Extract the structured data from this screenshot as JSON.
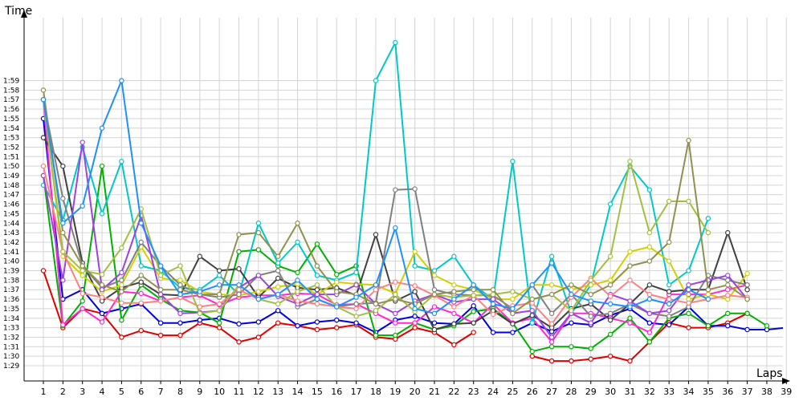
{
  "chart_data": {
    "type": "line",
    "title": "",
    "ylabel": "Time",
    "xlabel": "Laps",
    "x": [
      1,
      2,
      3,
      4,
      5,
      6,
      7,
      8,
      9,
      10,
      11,
      12,
      13,
      14,
      15,
      16,
      17,
      18,
      19,
      20,
      21,
      22,
      23,
      24,
      25,
      26,
      27,
      28,
      29,
      30,
      31,
      32,
      33,
      34,
      35,
      36,
      37,
      38,
      39
    ],
    "y_tick_labels": [
      "1:29",
      "1:30",
      "1:31",
      "1:32",
      "1:33",
      "1:34",
      "1:35",
      "1:36",
      "1:37",
      "1:38",
      "1:39",
      "1:40",
      "1:41",
      "1:42",
      "1:43",
      "1:44",
      "1:45",
      "1:46",
      "1:47",
      "1:48",
      "1:49",
      "1:50",
      "1:51",
      "1:52",
      "1:53",
      "1:54",
      "1:55",
      "1:56",
      "1:57",
      "1:58",
      "1:59"
    ],
    "ylim_seconds": [
      88,
      121
    ],
    "grid": true,
    "legend": "none",
    "series": [
      {
        "color": "#e00000",
        "values": [
          99,
          93,
          95,
          94.5,
          92,
          92.7,
          92.2,
          92.2,
          93.5,
          93,
          91.5,
          92,
          93.5,
          93.2,
          92.8,
          93,
          93.3,
          92,
          91.8,
          93,
          92.5,
          91.2,
          92.5,
          null,
          null,
          90,
          89.5,
          89.5,
          89.7,
          90,
          89.5,
          91.5,
          93.5,
          93,
          93,
          93.5,
          94.5,
          null,
          92.5
        ]
      },
      {
        "color": "#0000e0",
        "values": [
          115,
          96,
          97,
          94.5,
          95,
          95.5,
          93.5,
          93.5,
          93.8,
          94,
          93.4,
          93.6,
          94.8,
          93.2,
          93.6,
          93.8,
          93.5,
          92.5,
          93.8,
          94.2,
          93.5,
          93.4,
          95.3,
          92.5,
          92.5,
          93.5,
          92.6,
          93.5,
          93.3,
          94.3,
          95,
          93.5,
          93.3,
          95.2,
          93.2,
          93.2,
          92.8,
          92.8,
          93
        ]
      },
      {
        "color": "#00b000",
        "values": [
          109,
          93.2,
          95.8,
          110,
          93.8,
          97.5,
          96,
          94.8,
          94.6,
          93.5,
          101,
          101.2,
          99.5,
          98.8,
          101.8,
          98.6,
          99.5,
          92.2,
          92.2,
          93.5,
          92.8,
          93.2,
          94.7,
          95,
          93.5,
          90.5,
          91,
          91,
          90.8,
          92.3,
          94,
          91.5,
          94,
          94.5,
          93.2,
          94.5,
          94.5,
          93.2,
          null
        ]
      },
      {
        "color": "#ff2ad0",
        "values": [
          117,
          93.3,
          95,
          93.6,
          96.8,
          96.6,
          95.8,
          96.2,
          96.4,
          95.4,
          96.2,
          96.4,
          96.4,
          96.6,
          96.5,
          95.4,
          95.5,
          94.5,
          93.5,
          93.5,
          95.2,
          94.5,
          93.5,
          95.5,
          93.5,
          94,
          91.5,
          94.5,
          94.5,
          94,
          93.5,
          92.5,
          96.5,
          96.5,
          96.5,
          97,
          97.5,
          null,
          null
        ]
      },
      {
        "color": "#00c8c8",
        "values": [
          108,
          104.3,
          112,
          105,
          110.5,
          99.5,
          99,
          97.2,
          97,
          98.5,
          96.5,
          104,
          99.8,
          102,
          98.5,
          98,
          98.8,
          119,
          123,
          99.5,
          99,
          100.5,
          97.5,
          96,
          110.5,
          93.5,
          100.5,
          94.5,
          97.5,
          106,
          110,
          107.5,
          97.5,
          99,
          104.5,
          null,
          null,
          null,
          null
        ]
      },
      {
        "color": "#404040",
        "values": [
          113,
          110,
          99.8,
          95.8,
          97.2,
          97.8,
          96.5,
          96.4,
          100.5,
          99,
          99.2,
          96.2,
          98.2,
          97.2,
          97,
          97.2,
          96.4,
          102.8,
          95.8,
          96.8,
          92.8,
          93.4,
          93.5,
          94.8,
          93.4,
          94.3,
          93,
          95,
          95.5,
          93.8,
          95.5,
          97.5,
          96.8,
          97,
          97,
          103,
          97,
          null,
          null
        ]
      },
      {
        "color": "#d0d000",
        "values": [
          117,
          100.5,
          98.5,
          96.8,
          97.5,
          101.5,
          98.2,
          98,
          96.8,
          96.5,
          96.4,
          96.8,
          97.3,
          97.6,
          96.5,
          97.8,
          97.6,
          97.5,
          96.6,
          101,
          98.5,
          97.5,
          97,
          96,
          96,
          97.5,
          97.5,
          97,
          97.5,
          98,
          101,
          101.5,
          100,
          96,
          96.5,
          96,
          98.7,
          null,
          null
        ]
      },
      {
        "color": "#808080",
        "values": [
          117,
          106.6,
          99.5,
          97.2,
          98,
          102,
          99.5,
          97.5,
          96.5,
          96.2,
          96.5,
          98.5,
          99,
          95.2,
          96,
          95.2,
          95.5,
          95.6,
          107.5,
          107.6,
          97,
          96.5,
          96.4,
          96.4,
          95,
          97.5,
          94.5,
          96.5,
          94.2,
          94.5,
          95.5,
          94.5,
          94.2,
          95.2,
          98.5,
          98,
          97.5,
          null,
          null
        ]
      },
      {
        "color": "#a040e0",
        "values": [
          109,
          98,
          112.5,
          97,
          98.8,
          104.8,
          96.5,
          94.5,
          94.6,
          94.8,
          97.2,
          98.5,
          96.3,
          95.5,
          96.5,
          96.5,
          97.5,
          95.5,
          94.5,
          95.8,
          96.5,
          95.7,
          96,
          96,
          94.5,
          94.8,
          92,
          94.5,
          93.5,
          96.5,
          95.8,
          94.5,
          94.8,
          97.5,
          98,
          98.5,
          96,
          null,
          null
        ]
      },
      {
        "color": "#ff8080",
        "values": [
          110,
          101,
          96.6,
          96.2,
          95.6,
          95.6,
          95.8,
          96.2,
          95.2,
          95.5,
          97,
          96,
          96.5,
          95.8,
          95.5,
          95.2,
          95,
          97,
          97.8,
          97.4,
          96.4,
          95.2,
          96.4,
          94.4,
          95.3,
          95.6,
          93.4,
          96.2,
          98.2,
          96.3,
          98,
          96.5,
          96,
          95.6,
          96,
          96.4,
          96.2,
          null,
          null
        ]
      },
      {
        "color": "#a0c040",
        "values": [
          117,
          101,
          99,
          98.6,
          101.4,
          105.5,
          98.5,
          99.5,
          94.5,
          94.8,
          97.5,
          96,
          95.5,
          96.8,
          97.5,
          95.2,
          94.2,
          94.8,
          96.5,
          94.7,
          96.5,
          96.2,
          96.4,
          96.5,
          96.8,
          96,
          96.5,
          94.8,
          98,
          100.5,
          110.5,
          103,
          106.3,
          106.3,
          103,
          null,
          null,
          null,
          null
        ]
      },
      {
        "color": "#909050",
        "values": [
          118,
          103,
          99.5,
          97.5,
          96.8,
          98.5,
          97,
          97,
          96.5,
          96.5,
          102.8,
          103,
          100.5,
          104,
          99.5,
          96.8,
          96.5,
          95.5,
          96,
          95.5,
          96.5,
          96.8,
          97,
          97,
          94.5,
          96,
          96.5,
          97.5,
          96.5,
          97.5,
          99.5,
          100,
          102,
          112.7,
          97,
          97.5,
          96,
          null,
          null
        ]
      },
      {
        "color": "#1e90ff",
        "values": [
          117,
          104,
          105.8,
          114,
          119,
          104,
          99.5,
          96.5,
          96.8,
          97.5,
          97.5,
          96,
          96.5,
          98,
          96,
          95.2,
          96.2,
          97.5,
          103.5,
          95,
          94.5,
          96,
          97.5,
          95.5,
          95,
          97.5,
          99.8,
          96.5,
          95.8,
          95.5,
          95.2,
          96,
          95.5,
          97,
          96,
          null,
          null,
          null,
          null
        ]
      }
    ]
  }
}
